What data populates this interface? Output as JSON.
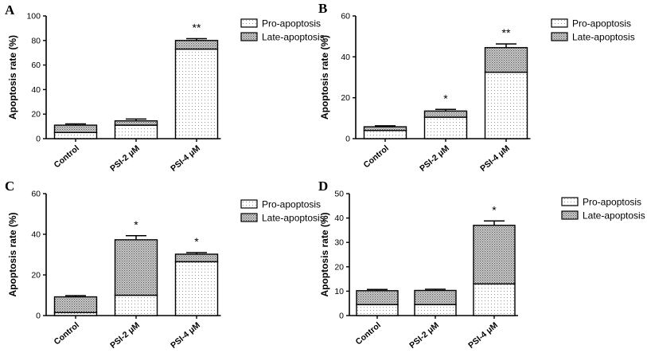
{
  "chart_data": [
    {
      "type": "bar",
      "stacked": true,
      "panel": "A",
      "title": "",
      "xlabel": "",
      "ylabel": "Apoptosis rate (%)",
      "ylim": [
        0,
        100
      ],
      "yticks": [
        0,
        20,
        40,
        60,
        80,
        100
      ],
      "categories": [
        "Control",
        "PSI-2 μM",
        "PSI-4 μM"
      ],
      "series": [
        {
          "name": "Pro-apoptosis",
          "values": [
            5,
            11,
            73
          ]
        },
        {
          "name": "Late-apoptosis",
          "values": [
            6,
            3.5,
            7
          ]
        }
      ],
      "error": [
        1,
        1.5,
        1.5
      ],
      "significance": [
        "",
        "",
        "**"
      ],
      "legend_position": "top-right"
    },
    {
      "type": "bar",
      "stacked": true,
      "panel": "B",
      "title": "",
      "xlabel": "",
      "ylabel": "Apoptosis rate (%)",
      "ylim": [
        0,
        60
      ],
      "yticks": [
        0,
        20,
        40,
        60
      ],
      "categories": [
        "Control",
        "PSI-2 μM",
        "PSI-4 μM"
      ],
      "series": [
        {
          "name": "Pro-apoptosis",
          "values": [
            4,
            10.5,
            32.5
          ]
        },
        {
          "name": "Late-apoptosis",
          "values": [
            1.8,
            3,
            12
          ]
        }
      ],
      "error": [
        0.5,
        0.8,
        1.8
      ],
      "significance": [
        "",
        "*",
        "**"
      ],
      "legend_position": "top-right"
    },
    {
      "type": "bar",
      "stacked": true,
      "panel": "C",
      "title": "",
      "xlabel": "",
      "ylabel": "Apoptosis rate (%)",
      "ylim": [
        0,
        60
      ],
      "yticks": [
        0,
        20,
        40,
        60
      ],
      "categories": [
        "Control",
        "PSI-2 μM",
        "PSI-4 μM"
      ],
      "series": [
        {
          "name": "Pro-apoptosis",
          "values": [
            1.5,
            10,
            26.5
          ]
        },
        {
          "name": "Late-apoptosis",
          "values": [
            7.7,
            27.3,
            3.7
          ]
        }
      ],
      "error": [
        0.6,
        2,
        0.8
      ],
      "significance": [
        "",
        "*",
        "*"
      ],
      "legend_position": "top-right"
    },
    {
      "type": "bar",
      "stacked": true,
      "panel": "D",
      "title": "",
      "xlabel": "",
      "ylabel": "Apoptosis rate (%)",
      "ylim": [
        0,
        50
      ],
      "yticks": [
        0,
        10,
        20,
        30,
        40,
        50
      ],
      "categories": [
        "Control",
        "PSI-2 μM",
        "PSI-4 μM"
      ],
      "series": [
        {
          "name": "Pro-apoptosis",
          "values": [
            4.5,
            4.5,
            13
          ]
        },
        {
          "name": "Late-apoptosis",
          "values": [
            5.7,
            5.8,
            24
          ]
        }
      ],
      "error": [
        0.5,
        0.5,
        1.8
      ],
      "significance": [
        "",
        "",
        "*"
      ],
      "legend_position": "top-right"
    }
  ]
}
